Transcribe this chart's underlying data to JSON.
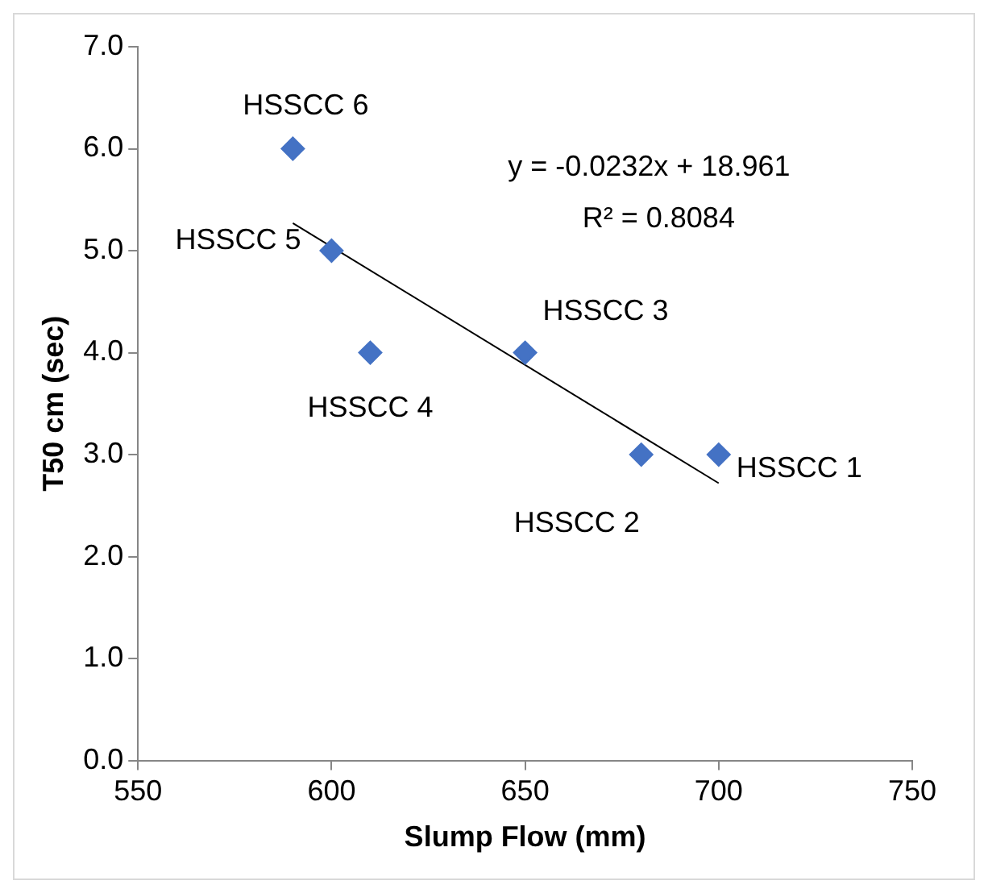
{
  "chart_data": {
    "type": "scatter",
    "xlabel": "Slump Flow (mm)",
    "ylabel": "T50 cm (sec)",
    "x": [
      700,
      680,
      650,
      610,
      600,
      590
    ],
    "series": [
      {
        "color": "#4472c4",
        "marker": "diamond",
        "values": [
          3,
          3,
          4,
          4,
          5,
          6
        ]
      },
      {
        "type": "line",
        "color": "#000000",
        "marker": "none",
        "x": [
          590,
          700
        ],
        "values": [
          5.27,
          2.72
        ]
      }
    ],
    "xlim": [
      550,
      750
    ],
    "xticks": [
      550,
      600,
      650,
      700,
      750
    ],
    "ylim": [
      0,
      7
    ],
    "yticks": [
      {
        "value": 0,
        "label": "0.0"
      },
      {
        "value": 1,
        "label": "1.0"
      },
      {
        "value": 2,
        "label": "2.0"
      },
      {
        "value": 3,
        "label": "3.0"
      },
      {
        "value": 4,
        "label": "4.0"
      },
      {
        "value": 5,
        "label": "5.0"
      },
      {
        "value": 6,
        "label": "6.0"
      },
      {
        "value": 7,
        "label": "7.0"
      }
    ],
    "grid": false,
    "legend": false,
    "annotations": [
      {
        "text": "HSSCC 1",
        "x": 700,
        "y": 3
      },
      {
        "text": "HSSCC 2",
        "x": 680,
        "y": 3
      },
      {
        "text": "HSSCC 3",
        "x": 650,
        "y": 4
      },
      {
        "text": "HSSCC 4",
        "x": 610,
        "y": 4
      },
      {
        "text": "HSSCC 5",
        "x": 600,
        "y": 5
      },
      {
        "text": "HSSCC 6",
        "x": 590,
        "y": 6
      },
      "y = -0.0232x + 18.961",
      "R² = 0.8084"
    ]
  }
}
